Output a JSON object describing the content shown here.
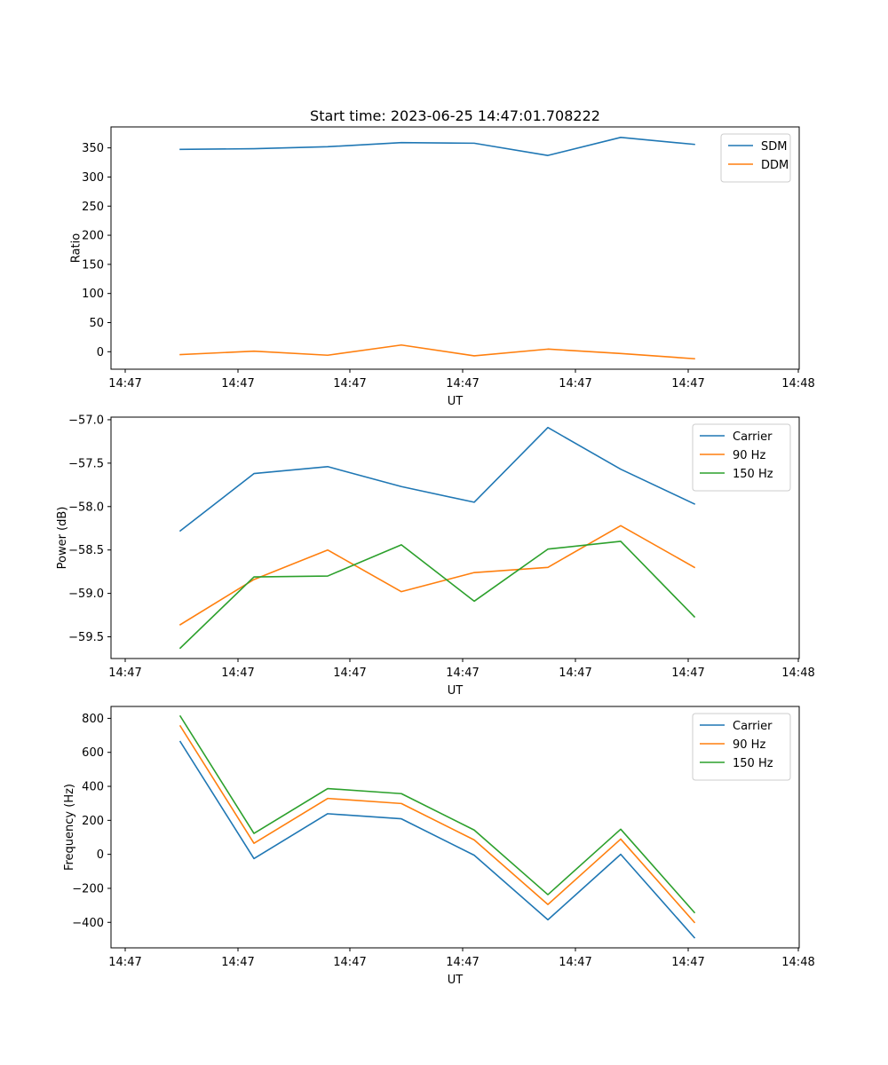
{
  "figure": {
    "title": "Start time: 2023-06-25 14:47:01.708222"
  },
  "colors": {
    "blue": "#1f77b4",
    "orange": "#ff7f0e",
    "green": "#2ca02c"
  },
  "chart_data": [
    {
      "type": "line",
      "title": "Start time: 2023-06-25 14:47:01.708222",
      "xlabel": "UT",
      "ylabel": "Ratio",
      "x_tick_labels": [
        "14:47",
        "14:47",
        "14:47",
        "14:47",
        "14:47",
        "14:47",
        "14:48"
      ],
      "y_ticks": [
        0,
        50,
        100,
        150,
        200,
        250,
        300,
        350
      ],
      "ylim": [
        -30,
        386
      ],
      "grid": false,
      "legend_position": "top-right",
      "series": [
        {
          "name": "SDM",
          "color": "#1f77b4",
          "values": [
            347.5,
            348.5,
            352,
            359,
            358,
            337,
            368,
            356
          ]
        },
        {
          "name": "DDM",
          "color": "#ff7f0e",
          "values": [
            -5,
            1,
            -6,
            11.5,
            -7,
            4.5,
            -3,
            -12
          ]
        }
      ]
    },
    {
      "type": "line",
      "title": "",
      "xlabel": "UT",
      "ylabel": "Power (dB)",
      "x_tick_labels": [
        "14:47",
        "14:47",
        "14:47",
        "14:47",
        "14:47",
        "14:47",
        "14:48"
      ],
      "y_ticks": [
        -59.5,
        -59.0,
        -58.5,
        -58.0,
        -57.5,
        -57.0
      ],
      "y_tick_labels": [
        "−59.5",
        "−59.0",
        "−58.5",
        "−58.0",
        "−57.5",
        "−57.0"
      ],
      "ylim": [
        -59.75,
        -56.97
      ],
      "grid": false,
      "legend_position": "top-right",
      "series": [
        {
          "name": "Carrier",
          "color": "#1f77b4",
          "values": [
            -58.28,
            -57.62,
            -57.54,
            -57.77,
            -57.95,
            -57.09,
            -57.57,
            -57.97
          ]
        },
        {
          "name": "90 Hz",
          "color": "#ff7f0e",
          "values": [
            -59.36,
            -58.84,
            -58.5,
            -58.98,
            -58.76,
            -58.7,
            -58.22,
            -58.7
          ]
        },
        {
          "name": "150 Hz",
          "color": "#2ca02c",
          "values": [
            -59.63,
            -58.81,
            -58.8,
            -58.44,
            -59.09,
            -58.49,
            -58.4,
            -59.27
          ]
        }
      ]
    },
    {
      "type": "line",
      "title": "",
      "xlabel": "UT",
      "ylabel": "Frequency (Hz)",
      "x_tick_labels": [
        "14:47",
        "14:47",
        "14:47",
        "14:47",
        "14:47",
        "14:47",
        "14:48"
      ],
      "y_ticks": [
        -400,
        -200,
        0,
        200,
        400,
        600,
        800
      ],
      "y_tick_labels": [
        "−400",
        "−200",
        "0",
        "200",
        "400",
        "600",
        "800"
      ],
      "ylim": [
        -550,
        870
      ],
      "grid": false,
      "legend_position": "top-right",
      "series": [
        {
          "name": "Carrier",
          "color": "#1f77b4",
          "values": [
            663,
            -25,
            239,
            209,
            -5,
            -385,
            0,
            -490
          ]
        },
        {
          "name": "90 Hz",
          "color": "#ff7f0e",
          "values": [
            755,
            65,
            329,
            299,
            85,
            -295,
            90,
            -400
          ]
        },
        {
          "name": "150 Hz",
          "color": "#2ca02c",
          "values": [
            813,
            123,
            387,
            357,
            143,
            -237,
            148,
            -342
          ]
        }
      ]
    }
  ]
}
